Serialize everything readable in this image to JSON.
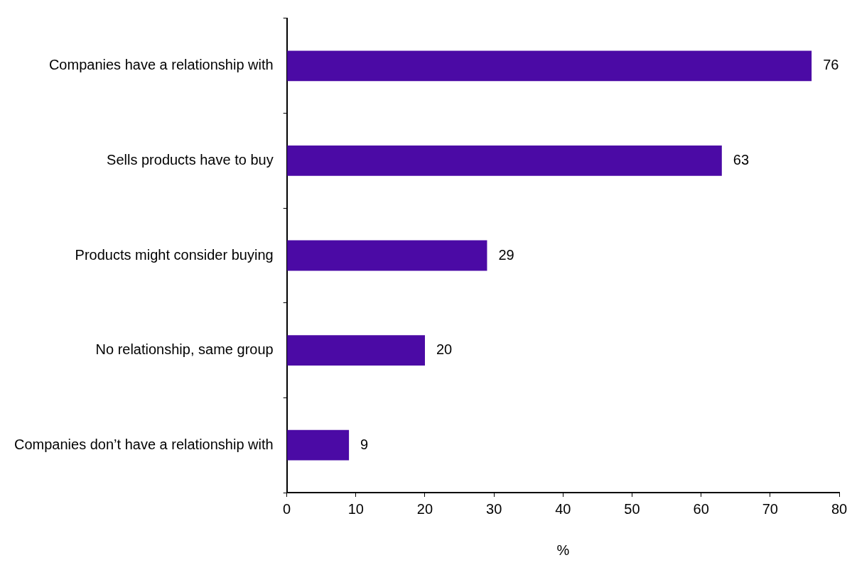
{
  "chart_data": {
    "type": "bar",
    "orientation": "horizontal",
    "xlabel": "%",
    "categories": [
      "Companies have a relationship with",
      "Sells products have to buy",
      "Products might consider buying",
      "No relationship, same group",
      "Companies don’t have a relationship with"
    ],
    "values": [
      76,
      63,
      29,
      20,
      9
    ],
    "color": "#4b0aa5",
    "xlim": [
      0,
      80
    ],
    "xticks": [
      0,
      10,
      20,
      30,
      40,
      50,
      60,
      70,
      80
    ],
    "grid": false,
    "data_labels": true
  }
}
